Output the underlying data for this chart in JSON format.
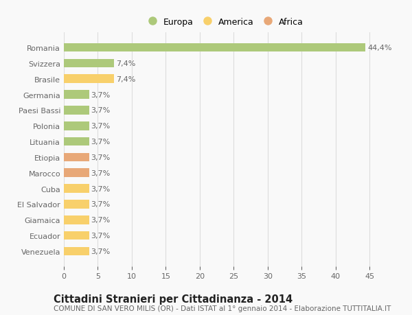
{
  "categories": [
    "Venezuela",
    "Ecuador",
    "Giamaica",
    "El Salvador",
    "Cuba",
    "Marocco",
    "Etiopia",
    "Lituania",
    "Polonia",
    "Paesi Bassi",
    "Germania",
    "Brasile",
    "Svizzera",
    "Romania"
  ],
  "values": [
    3.7,
    3.7,
    3.7,
    3.7,
    3.7,
    3.7,
    3.7,
    3.7,
    3.7,
    3.7,
    3.7,
    7.4,
    7.4,
    44.4
  ],
  "colors": [
    "#f8d06b",
    "#f8d06b",
    "#f8d06b",
    "#f8d06b",
    "#f8d06b",
    "#e8a878",
    "#e8a878",
    "#adc97a",
    "#adc97a",
    "#adc97a",
    "#adc97a",
    "#f8d06b",
    "#adc97a",
    "#adc97a"
  ],
  "labels": [
    "3,7%",
    "3,7%",
    "3,7%",
    "3,7%",
    "3,7%",
    "3,7%",
    "3,7%",
    "3,7%",
    "3,7%",
    "3,7%",
    "3,7%",
    "7,4%",
    "7,4%",
    "44,4%"
  ],
  "xlim": [
    0,
    47
  ],
  "xticks": [
    0,
    5,
    10,
    15,
    20,
    25,
    30,
    35,
    40,
    45
  ],
  "title": "Cittadini Stranieri per Cittadinanza - 2014",
  "subtitle": "COMUNE DI SAN VERO MILIS (OR) - Dati ISTAT al 1° gennaio 2014 - Elaborazione TUTTITALIA.IT",
  "legend_labels": [
    "Europa",
    "America",
    "Africa"
  ],
  "legend_colors": [
    "#adc97a",
    "#f8d06b",
    "#e8a878"
  ],
  "background_color": "#f9f9f9",
  "bar_height": 0.55,
  "grid_color": "#dddddd",
  "label_color": "#666666",
  "title_fontsize": 10.5,
  "subtitle_fontsize": 7.5,
  "tick_fontsize": 8,
  "label_fontsize": 8
}
